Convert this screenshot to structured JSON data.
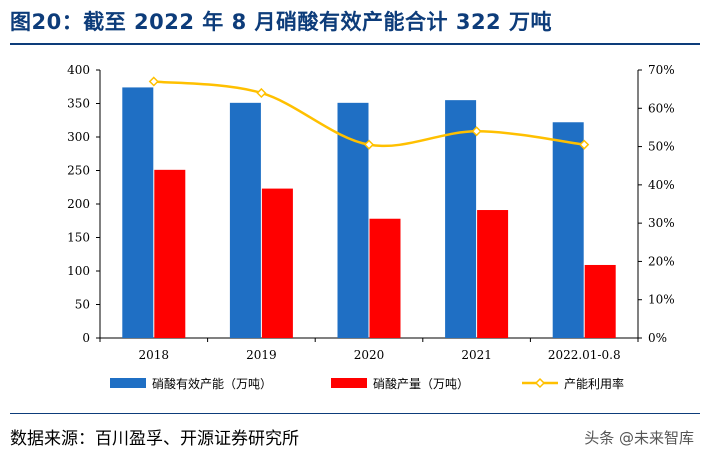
{
  "title": "图20：截至 2022 年 8 月硝酸有效产能合计 322 万吨",
  "source": "数据来源：百川盈孚、开源证券研究所",
  "watermark": "头条 @未来智库",
  "colors": {
    "capacity": "#1f6fc4",
    "production": "#ff0000",
    "utilization": "#ffc000",
    "title": "#0d3c7a"
  },
  "chart_data": {
    "type": "bar",
    "categories": [
      "2018",
      "2019",
      "2020",
      "2021",
      "2022.01-0.8"
    ],
    "series": [
      {
        "name": "硝酸有效产能（万吨）",
        "type": "bar",
        "axis": "left",
        "values": [
          374,
          351,
          351,
          355,
          322
        ]
      },
      {
        "name": "硝酸产量（万吨）",
        "type": "bar",
        "axis": "left",
        "values": [
          251,
          223,
          178,
          191,
          109
        ]
      },
      {
        "name": "产能利用率",
        "type": "line",
        "axis": "right",
        "values": [
          0.67,
          0.64,
          0.505,
          0.54,
          0.505
        ]
      }
    ],
    "left_axis": {
      "ylim": [
        0,
        400
      ],
      "ticks": [
        "0",
        "50",
        "100",
        "150",
        "200",
        "250",
        "300",
        "350",
        "400"
      ]
    },
    "right_axis": {
      "ylim": [
        0,
        0.7
      ],
      "ticks": [
        "0%",
        "10%",
        "20%",
        "30%",
        "40%",
        "50%",
        "60%",
        "70%"
      ]
    },
    "grid": false,
    "legend_position": "bottom"
  }
}
